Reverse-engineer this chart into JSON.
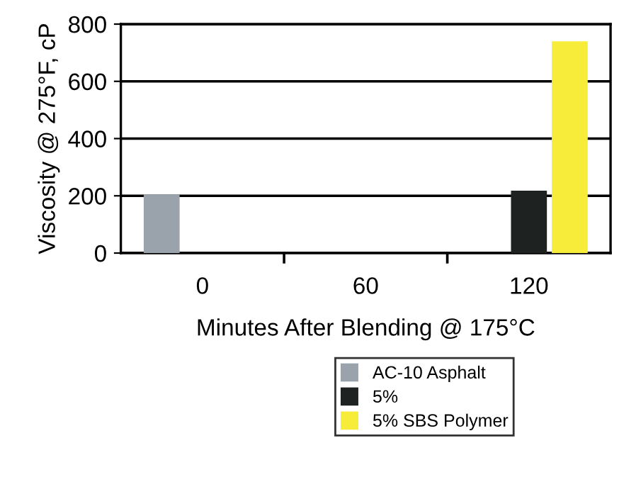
{
  "chart_data": {
    "type": "bar",
    "xlabel": "Minutes After Blending @ 175°C",
    "ylabel": "Viscosity @ 275°F, cP",
    "categories": [
      "0",
      "60",
      "120"
    ],
    "series": [
      {
        "name": "AC-10 Asphalt",
        "color": "#9aa3ab",
        "values": [
          205,
          null,
          null
        ]
      },
      {
        "name": "5%",
        "color": "#1e2321",
        "values": [
          null,
          null,
          218
        ]
      },
      {
        "name": "5% SBS Polymer",
        "color": "#f7ec3a",
        "values": [
          null,
          null,
          740
        ]
      }
    ],
    "ylim": [
      0,
      800
    ],
    "yticks": [
      0,
      200,
      400,
      600,
      800
    ],
    "grid": "y",
    "legend": "bottom"
  }
}
